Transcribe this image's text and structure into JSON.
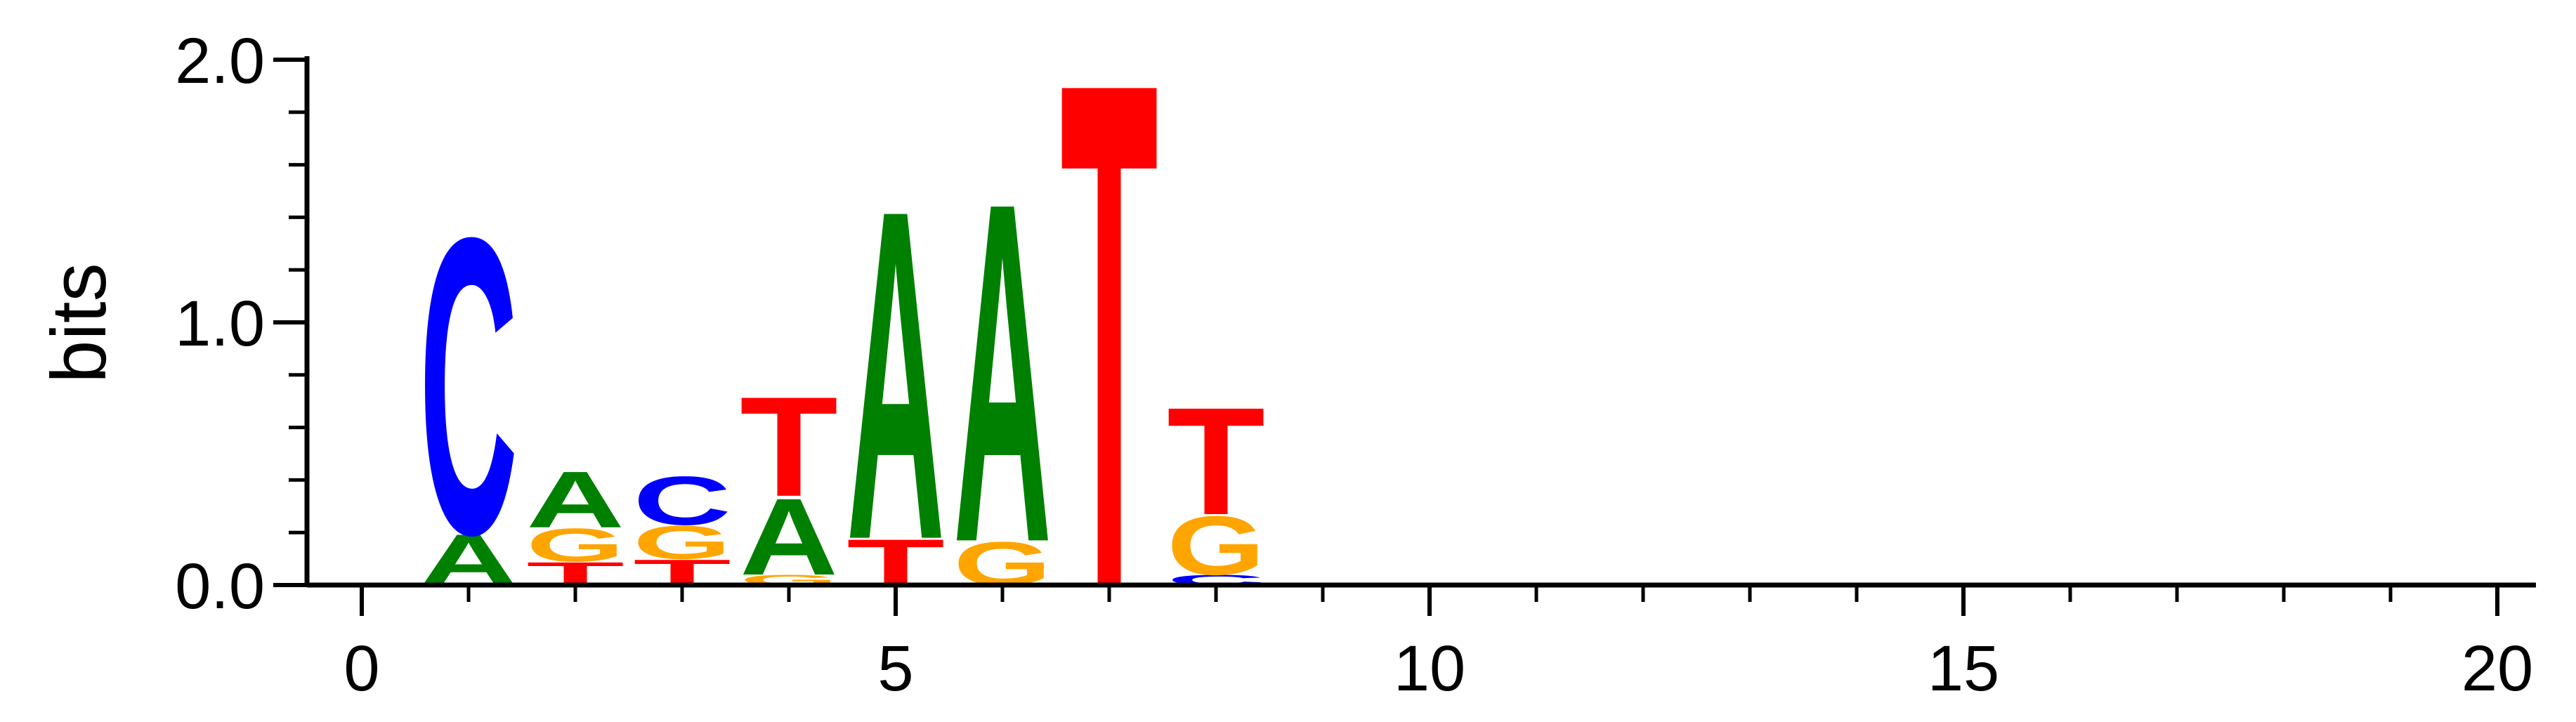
{
  "chart_data": {
    "type": "sequence-logo",
    "title": "",
    "xlabel": "",
    "ylabel": "bits",
    "xlim": [
      -0.6,
      20.5
    ],
    "ylim": [
      0,
      2.0
    ],
    "x_ticks_major": [
      0,
      5,
      10,
      15,
      20
    ],
    "x_ticks_minor": [
      1,
      2,
      3,
      4,
      6,
      7,
      8,
      9,
      11,
      12,
      13,
      14,
      16,
      17,
      18,
      19
    ],
    "y_ticks_major": [
      0.0,
      1.0,
      2.0
    ],
    "y_tick_labels": [
      "0.0",
      "1.0",
      "2.0"
    ],
    "y_ticks_minor": [
      0.2,
      0.4,
      0.6,
      0.8,
      1.2,
      1.4,
      1.6,
      1.8
    ],
    "colors": {
      "A": "#008000",
      "C": "#0000ff",
      "G": "#ffa500",
      "T": "#ff0000"
    },
    "positions": [
      {
        "x": 1,
        "stack": [
          {
            "letter": "A",
            "bits": 0.2
          },
          {
            "letter": "C",
            "bits": 1.16
          }
        ]
      },
      {
        "x": 2,
        "stack": [
          {
            "letter": "T",
            "bits": 0.09
          },
          {
            "letter": "G",
            "bits": 0.13
          },
          {
            "letter": "A",
            "bits": 0.22
          }
        ]
      },
      {
        "x": 3,
        "stack": [
          {
            "letter": "T",
            "bits": 0.1
          },
          {
            "letter": "G",
            "bits": 0.13
          },
          {
            "letter": "C",
            "bits": 0.19
          }
        ]
      },
      {
        "x": 4,
        "stack": [
          {
            "letter": "G",
            "bits": 0.04
          },
          {
            "letter": "A",
            "bits": 0.3
          },
          {
            "letter": "T",
            "bits": 0.39
          }
        ]
      },
      {
        "x": 5,
        "stack": [
          {
            "letter": "T",
            "bits": 0.18
          },
          {
            "letter": "A",
            "bits": 1.29
          }
        ]
      },
      {
        "x": 6,
        "stack": [
          {
            "letter": "G",
            "bits": 0.17
          },
          {
            "letter": "A",
            "bits": 1.33
          }
        ]
      },
      {
        "x": 7,
        "stack": [
          {
            "letter": "T",
            "bits": 1.98
          }
        ]
      },
      {
        "x": 8,
        "stack": [
          {
            "letter": "C",
            "bits": 0.04
          },
          {
            "letter": "G",
            "bits": 0.23
          },
          {
            "letter": "T",
            "bits": 0.42
          }
        ]
      }
    ]
  }
}
